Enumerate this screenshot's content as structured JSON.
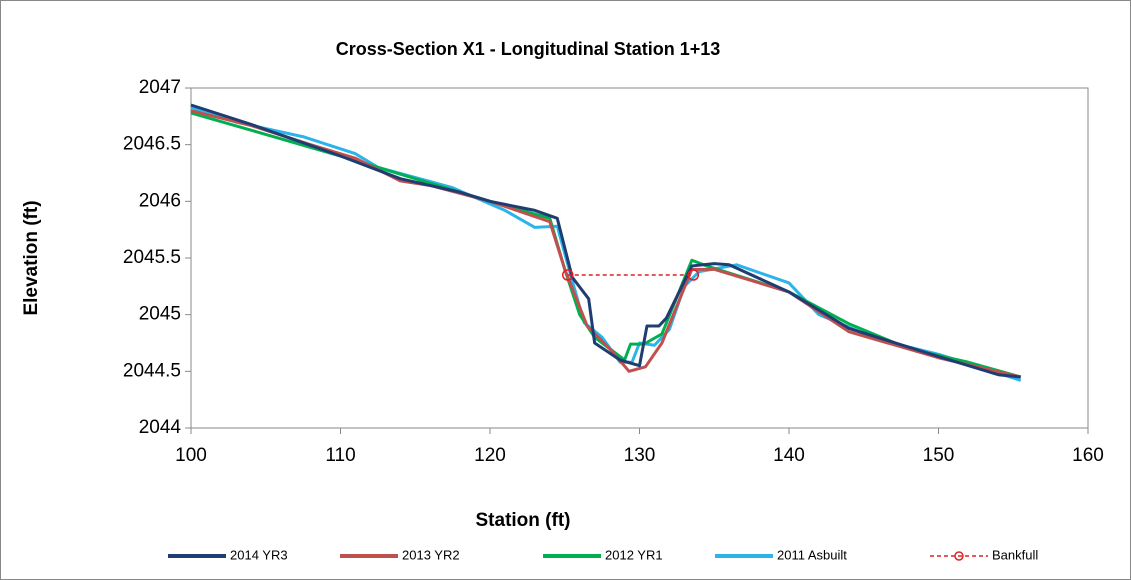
{
  "chart_data": {
    "type": "line",
    "title": "Cross-Section X1 - Longitudinal Station 1+13",
    "x_label": "Station (ft)",
    "y_label": "Elevation (ft)",
    "xlim": [
      100,
      160
    ],
    "xticks": [
      100,
      110,
      120,
      130,
      140,
      150,
      160
    ],
    "ylim": [
      2044,
      2047
    ],
    "yticks": [
      2044,
      2044.5,
      2045,
      2045.5,
      2046,
      2046.5,
      2047
    ],
    "grid": false,
    "legend": "bottom",
    "series": [
      {
        "name": "2014 YR3",
        "color": "#1f3d73",
        "x": [
          100,
          104,
          110,
          114,
          118,
          120,
          123,
          124.5,
          125.5,
          126.6,
          127,
          128.7,
          130,
          130.5,
          131.3,
          131.8,
          133.5,
          135,
          136,
          140,
          144,
          150,
          154,
          155.5
        ],
        "values": [
          2046.85,
          2046.68,
          2046.4,
          2046.2,
          2046.08,
          2046.0,
          2045.92,
          2045.85,
          2045.33,
          2045.14,
          2044.75,
          2044.6,
          2044.55,
          2044.9,
          2044.9,
          2044.97,
          2045.43,
          2045.45,
          2045.44,
          2045.2,
          2044.88,
          2044.63,
          2044.47,
          2044.45
        ]
      },
      {
        "name": "2013 YR2",
        "color": "#c0504d",
        "x": [
          100,
          104,
          108,
          111,
          114,
          116,
          120,
          124,
          125,
          126.5,
          128,
          129.3,
          130.4,
          131.5,
          133.5,
          135,
          140,
          144,
          150,
          155.5
        ],
        "values": [
          2046.8,
          2046.67,
          2046.5,
          2046.38,
          2046.18,
          2046.14,
          2046.0,
          2045.82,
          2045.4,
          2044.9,
          2044.7,
          2044.5,
          2044.54,
          2044.75,
          2045.4,
          2045.4,
          2045.2,
          2044.85,
          2044.62,
          2044.45
        ]
      },
      {
        "name": "2012 YR1",
        "color": "#00b050",
        "x": [
          100,
          110,
          120,
          124,
          125,
          126,
          127,
          129,
          129.4,
          130.3,
          131.5,
          133.5,
          134.5,
          140,
          144,
          148,
          152,
          155.5
        ],
        "values": [
          2046.78,
          2046.4,
          2046.0,
          2045.85,
          2045.4,
          2045.0,
          2044.8,
          2044.6,
          2044.74,
          2044.74,
          2044.83,
          2045.48,
          2045.43,
          2045.2,
          2044.92,
          2044.7,
          2044.58,
          2044.45
        ]
      },
      {
        "name": "2011 Asbuilt",
        "color": "#2ab4ea",
        "x": [
          100,
          103,
          107.5,
          111,
          112.5,
          117.5,
          121,
          123,
          124.5,
          125.5,
          126.3,
          127.5,
          128.7,
          129.5,
          130,
          131,
          132,
          133,
          134,
          136.5,
          140,
          142,
          146,
          150,
          155.5
        ],
        "values": [
          2046.83,
          2046.7,
          2046.57,
          2046.42,
          2046.3,
          2046.12,
          2045.92,
          2045.77,
          2045.78,
          2045.3,
          2044.93,
          2044.8,
          2044.58,
          2044.58,
          2044.75,
          2044.73,
          2044.87,
          2045.25,
          2045.38,
          2045.44,
          2045.28,
          2045.0,
          2044.78,
          2044.65,
          2044.42
        ]
      },
      {
        "name": "Bankfull",
        "color": "#e02020",
        "dashed": true,
        "marker": "circle",
        "x": [
          125.2,
          133.6
        ],
        "values": [
          2045.35,
          2045.35
        ]
      }
    ]
  }
}
